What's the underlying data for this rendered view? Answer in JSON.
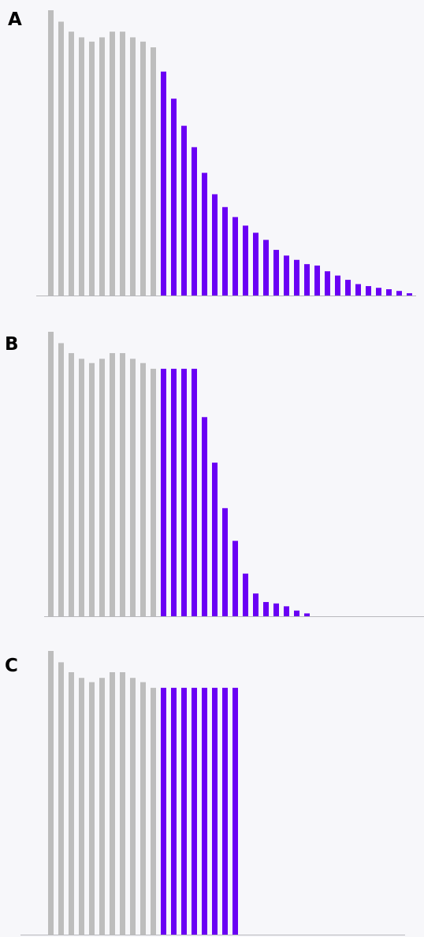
{
  "colors": {
    "history": "#bdbdbd",
    "forecast": "#6a00f4",
    "axis": "#b8b8bc",
    "background": "#f7f7fa"
  },
  "chart_data": [
    {
      "type": "bar",
      "panel_label": "A",
      "ylim": [
        0,
        1.0
      ],
      "series": [
        {
          "role": "history",
          "values": [
            1.0,
            0.96,
            0.925,
            0.905,
            0.89,
            0.905,
            0.925,
            0.925,
            0.905,
            0.89,
            0.87
          ]
        },
        {
          "role": "forecast",
          "values": [
            0.785,
            0.69,
            0.595,
            0.52,
            0.43,
            0.355,
            0.31,
            0.275,
            0.245,
            0.22,
            0.195,
            0.16,
            0.14,
            0.125,
            0.11,
            0.105,
            0.085,
            0.07,
            0.055,
            0.04,
            0.033,
            0.027,
            0.022,
            0.016,
            0.008
          ]
        }
      ],
      "xlabel": "",
      "ylabel": ""
    },
    {
      "type": "bar",
      "panel_label": "B",
      "ylim": [
        0,
        1.0
      ],
      "series": [
        {
          "role": "history",
          "values": [
            1.0,
            0.96,
            0.925,
            0.905,
            0.89,
            0.905,
            0.925,
            0.925,
            0.905,
            0.89,
            0.87
          ]
        },
        {
          "role": "forecast",
          "values": [
            0.87,
            0.87,
            0.87,
            0.87,
            0.7,
            0.54,
            0.38,
            0.265,
            0.15,
            0.08,
            0.05,
            0.045,
            0.035,
            0.02,
            0.01
          ]
        }
      ],
      "xlabel": "",
      "ylabel": ""
    },
    {
      "type": "bar",
      "panel_label": "C",
      "ylim": [
        0,
        1.0
      ],
      "series": [
        {
          "role": "history",
          "values": [
            1.0,
            0.96,
            0.925,
            0.905,
            0.89,
            0.905,
            0.925,
            0.925,
            0.905,
            0.89,
            0.87
          ]
        },
        {
          "role": "forecast",
          "values": [
            0.87,
            0.87,
            0.87,
            0.87,
            0.87,
            0.87,
            0.87,
            0.87
          ]
        }
      ],
      "xlabel": "",
      "ylabel": ""
    }
  ]
}
